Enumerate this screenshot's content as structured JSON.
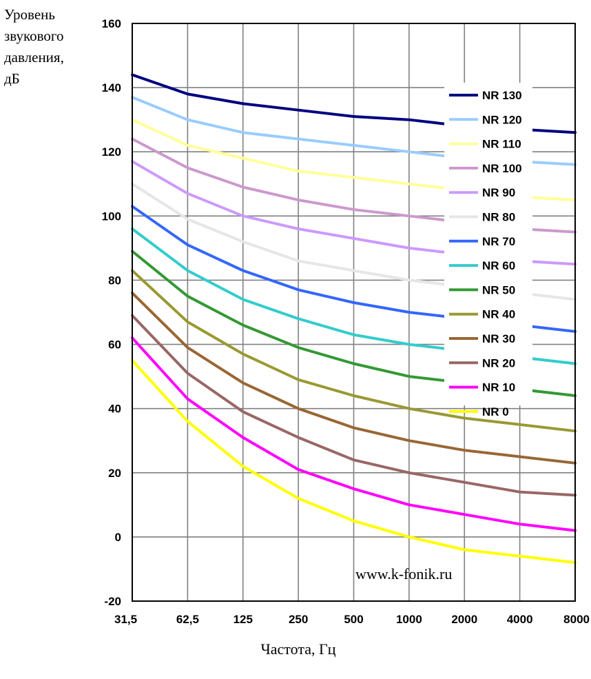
{
  "chart_data": {
    "type": "line",
    "ylabel_lines": [
      "Уровень",
      "звукового",
      "давления,",
      "дБ"
    ],
    "xlabel": "Частота, Гц",
    "watermark": "www.k-fonik.ru",
    "categories": [
      "31,5",
      "62,5",
      "125",
      "250",
      "500",
      "1000",
      "2000",
      "4000",
      "8000"
    ],
    "y_ticks": [
      "160",
      "140",
      "120",
      "100",
      "80",
      "60",
      "40",
      "20",
      "0",
      "-20"
    ],
    "ylim": [
      -20,
      160
    ],
    "grid": true,
    "legend_position": "top-right",
    "series": [
      {
        "name": "NR 130",
        "color": "#000080",
        "values": [
          144,
          138,
          135,
          133,
          131,
          130,
          128,
          127,
          126
        ]
      },
      {
        "name": "NR 120",
        "color": "#99CCFF",
        "values": [
          137,
          130,
          126,
          124,
          122,
          120,
          118,
          117,
          116
        ]
      },
      {
        "name": "NR 110",
        "color": "#FFFF99",
        "values": [
          130,
          122,
          118,
          114,
          112,
          110,
          108,
          106,
          105
        ]
      },
      {
        "name": "NR 100",
        "color": "#CC99CC",
        "values": [
          124,
          115,
          109,
          105,
          102,
          100,
          98,
          96,
          95
        ]
      },
      {
        "name": "NR 90",
        "color": "#CC99FF",
        "values": [
          117,
          107,
          100,
          96,
          93,
          90,
          88,
          86,
          85
        ]
      },
      {
        "name": "NR 80",
        "color": "#E6E6E6",
        "values": [
          110,
          99,
          92,
          86,
          83,
          80,
          78,
          76,
          74
        ]
      },
      {
        "name": "NR 70",
        "color": "#3366FF",
        "values": [
          103,
          91,
          83,
          77,
          73,
          70,
          68,
          66,
          64
        ]
      },
      {
        "name": "NR 60",
        "color": "#33CCCC",
        "values": [
          96,
          83,
          74,
          68,
          63,
          60,
          58,
          56,
          54
        ]
      },
      {
        "name": "NR 50",
        "color": "#339933",
        "values": [
          89,
          75,
          66,
          59,
          54,
          50,
          48,
          46,
          44
        ]
      },
      {
        "name": "NR 40",
        "color": "#999933",
        "values": [
          83,
          67,
          57,
          49,
          44,
          40,
          37,
          35,
          33
        ]
      },
      {
        "name": "NR 30",
        "color": "#996633",
        "values": [
          76,
          59,
          48,
          40,
          34,
          30,
          27,
          25,
          23
        ]
      },
      {
        "name": "NR 20",
        "color": "#996666",
        "values": [
          69,
          51,
          39,
          31,
          24,
          20,
          17,
          14,
          13
        ]
      },
      {
        "name": "NR 10",
        "color": "#FF00FF",
        "values": [
          62,
          43,
          31,
          21,
          15,
          10,
          7,
          4,
          2
        ]
      },
      {
        "name": "NR 0",
        "color": "#FFFF00",
        "values": [
          55,
          36,
          22,
          12,
          5,
          0,
          -4,
          -6,
          -8
        ]
      }
    ]
  }
}
